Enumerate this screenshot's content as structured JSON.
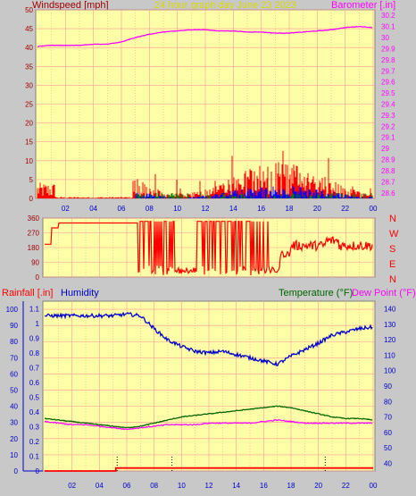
{
  "colors": {
    "background": "#c8c8c8",
    "plot_bg": "#ffffa8",
    "grid": "#ff9a9a",
    "wind_label": "#a00000",
    "title": "#d8d800",
    "barometer": "#ff00ff",
    "direction": "#ff0000",
    "rain_label": "#ff0000",
    "humidity": "#0000cc",
    "temperature": "#006400",
    "dewpoint": "#ff00ff",
    "axis_num": "#a00000",
    "axis_left_bottom": "#0000cc",
    "wind_red": "#ff0000",
    "wind_blue": "#0000ff",
    "wind_green": "#008000"
  },
  "header": {
    "windspeed_label": "Windspeed [mph]",
    "title": "24 hour graph day   June 23 2023",
    "barometer_label": "Barometer [.in]"
  },
  "bottom_header": {
    "rainfall_label": "Rainfall [.in]",
    "humidity_label": "Humidity",
    "temperature_label": "Temperature (°F)",
    "dewpoint_label": "Dew Point (°F)"
  },
  "chart_data": [
    {
      "type": "line",
      "title": "",
      "x_ticks": [
        "02",
        "04",
        "06",
        "08",
        "10",
        "12",
        "14",
        "16",
        "18",
        "20",
        "22",
        "00"
      ],
      "y_left_label": "Windspeed [mph]",
      "y_left_ticks": [
        "50",
        "45",
        "40",
        "35",
        "30",
        "25",
        "20",
        "15",
        "10",
        "5",
        "0"
      ],
      "ylim_left": [
        0,
        50
      ],
      "y_right_label": "Barometer [.in]",
      "y_right_ticks": [
        "30.2",
        "30.1",
        "30",
        "29.9",
        "29.8",
        "29.7",
        "29.6",
        "29.5",
        "29.4",
        "29.3",
        "29.2",
        "29.1",
        "29",
        "28.9",
        "28.8",
        "28.7",
        "28.6"
      ],
      "ylim_right": [
        28.55,
        30.25
      ],
      "grid": true,
      "series": [
        {
          "name": "Barometer",
          "axis": "right",
          "x": [
            0,
            1,
            2,
            3,
            4,
            5,
            6,
            7,
            8,
            9,
            10,
            11,
            12,
            13,
            14,
            15,
            16,
            17,
            18,
            19,
            20,
            21,
            22,
            23,
            24
          ],
          "y": [
            29.92,
            29.93,
            29.93,
            29.93,
            29.94,
            29.94,
            29.96,
            30.0,
            30.03,
            30.05,
            30.06,
            30.07,
            30.07,
            30.06,
            30.06,
            30.05,
            30.05,
            30.04,
            30.04,
            30.05,
            30.06,
            30.07,
            30.09,
            30.1,
            30.09
          ]
        }
      ]
    },
    {
      "type": "line",
      "title": "",
      "y_left_ticks": [
        "360",
        "270",
        "180",
        "90",
        "0"
      ],
      "ylim": [
        0,
        360
      ],
      "y_right_ticks": [
        "N",
        "W",
        "S",
        "E",
        "N"
      ],
      "grid": true
    },
    {
      "type": "line",
      "title": "",
      "x_ticks": [
        "02",
        "04",
        "06",
        "08",
        "10",
        "12",
        "14",
        "16",
        "18",
        "20",
        "22",
        "00"
      ],
      "y_humidity_ticks": [
        "100",
        "90",
        "80",
        "70",
        "60",
        "50",
        "40",
        "30",
        "20",
        "10",
        "0"
      ],
      "y_rain_ticks": [
        "1.1",
        "1",
        "0.9",
        "0.8",
        "0.7",
        "0.6",
        "0.5",
        "0.4",
        "0.3",
        "0.2",
        "0.1",
        "0"
      ],
      "y_temp_ticks": [
        "140",
        "130",
        "120",
        "110",
        "100",
        "90",
        "80",
        "70",
        "60",
        "50",
        "40"
      ],
      "ylim_humidity": [
        0,
        105
      ],
      "ylim_temp": [
        35,
        145
      ],
      "grid": true,
      "series": [
        {
          "name": "Humidity",
          "axis": "humidity",
          "x": [
            0,
            1,
            2,
            3,
            4,
            5,
            6,
            7,
            8,
            9,
            10,
            11,
            12,
            13,
            14,
            15,
            16,
            17,
            18,
            19,
            20,
            21,
            22,
            23,
            24
          ],
          "y": [
            96,
            96,
            96,
            96,
            96,
            96,
            97,
            96,
            88,
            81,
            77,
            74,
            73,
            74,
            72,
            70,
            68,
            66,
            71,
            75,
            79,
            84,
            86,
            88,
            89
          ]
        },
        {
          "name": "Temperature (°F)",
          "axis": "temp",
          "x": [
            0,
            1,
            2,
            3,
            4,
            5,
            6,
            7,
            8,
            9,
            10,
            11,
            12,
            13,
            14,
            15,
            16,
            17,
            18,
            19,
            20,
            21,
            22,
            23,
            24
          ],
          "y": [
            69,
            68,
            67,
            66,
            65,
            64,
            63,
            64,
            66,
            68,
            70,
            71,
            72,
            73,
            74,
            75,
            76,
            77,
            76,
            74,
            72,
            70,
            69,
            69,
            68
          ]
        },
        {
          "name": "Dew Point (°F)",
          "axis": "temp",
          "x": [
            0,
            1,
            2,
            3,
            4,
            5,
            6,
            7,
            8,
            9,
            10,
            11,
            12,
            13,
            14,
            15,
            16,
            17,
            18,
            19,
            20,
            21,
            22,
            23,
            24
          ],
          "y": [
            67,
            66,
            65,
            65,
            64,
            63,
            62,
            63,
            64,
            65,
            65,
            65,
            66,
            66,
            66,
            66,
            67,
            68,
            67,
            66,
            66,
            66,
            66,
            66,
            66
          ]
        },
        {
          "name": "Rainfall [.in]",
          "axis": "rain",
          "x": [
            0,
            1,
            2,
            3,
            4,
            5,
            5.2,
            6,
            24
          ],
          "y": [
            0,
            0,
            0,
            0,
            0,
            0,
            0.02,
            0.02,
            0.02
          ]
        }
      ]
    }
  ]
}
